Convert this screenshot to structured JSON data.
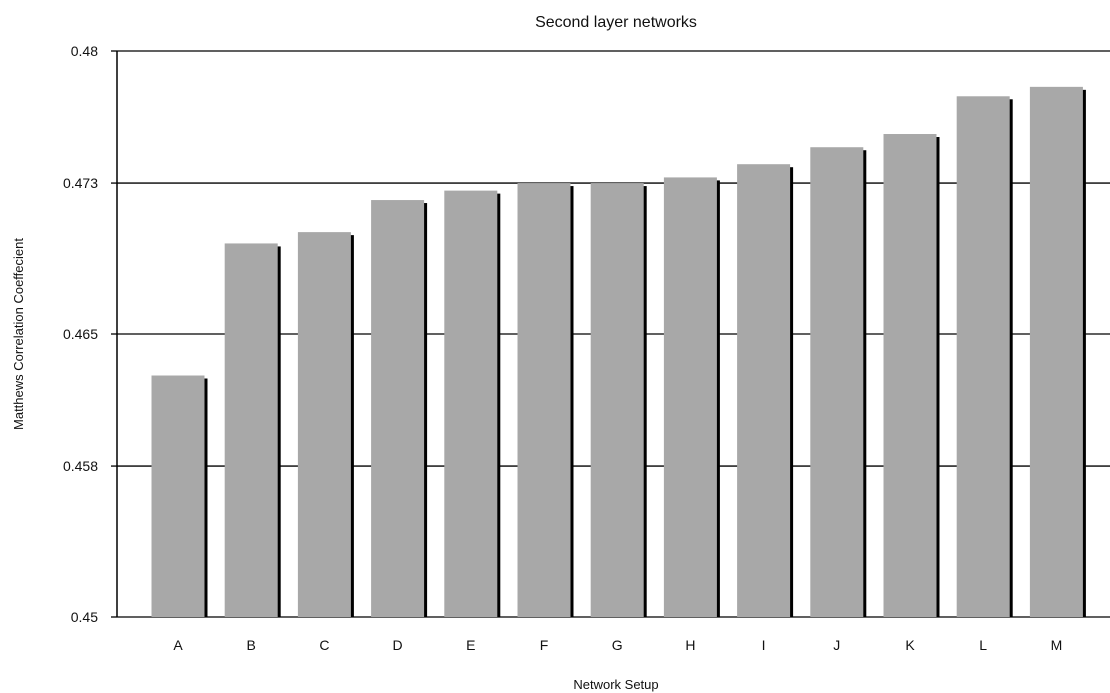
{
  "chart_data": {
    "type": "bar",
    "title": "Second layer networks",
    "xlabel": "Network Setup",
    "ylabel": "Matthews Correlation Coeffecient",
    "categories": [
      "A",
      "B",
      "C",
      "D",
      "E",
      "F",
      "G",
      "H",
      "I",
      "J",
      "K",
      "L",
      "M"
    ],
    "values": [
      0.4628,
      0.4698,
      0.4704,
      0.4721,
      0.4726,
      0.473,
      0.473,
      0.4733,
      0.474,
      0.4749,
      0.4756,
      0.4776,
      0.4781
    ],
    "ylim": [
      0.45,
      0.48
    ],
    "yticks": [
      0.45,
      0.458,
      0.465,
      0.473,
      0.48
    ],
    "ytick_labels": [
      "0.45",
      "0.458",
      "0.465",
      "0.473",
      "0.48"
    ],
    "grid": true,
    "legend": "none",
    "colors": {
      "bar": "#a8a8a8",
      "bar_shadow": "#000000",
      "grid": "#000000",
      "axis": "#000000"
    }
  }
}
